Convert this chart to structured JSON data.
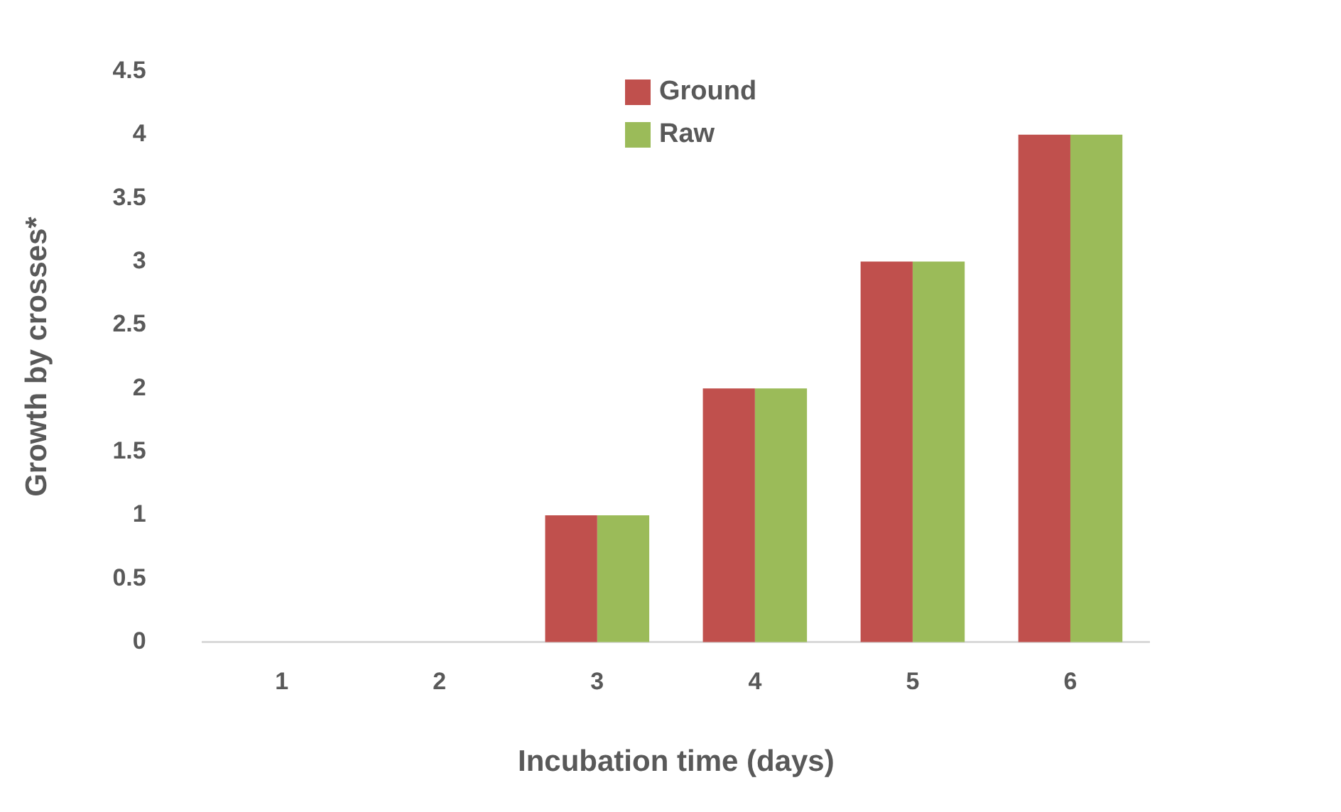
{
  "chart_data": {
    "type": "bar",
    "xlabel": "Incubation time (days)",
    "ylabel": "Growth by crosses*",
    "categories": [
      "1",
      "2",
      "3",
      "4",
      "5",
      "6"
    ],
    "series": [
      {
        "name": "Ground",
        "color": "#c0504d",
        "values": [
          0,
          0,
          1,
          2,
          3,
          4
        ]
      },
      {
        "name": "Raw",
        "color": "#9bbb59",
        "values": [
          0,
          0,
          1,
          2,
          3,
          4
        ]
      }
    ],
    "ylim": [
      0,
      4.5
    ],
    "yticks": [
      0,
      0.5,
      1,
      1.5,
      2,
      2.5,
      3,
      3.5,
      4,
      4.5
    ],
    "grid": false,
    "legend": "top"
  }
}
